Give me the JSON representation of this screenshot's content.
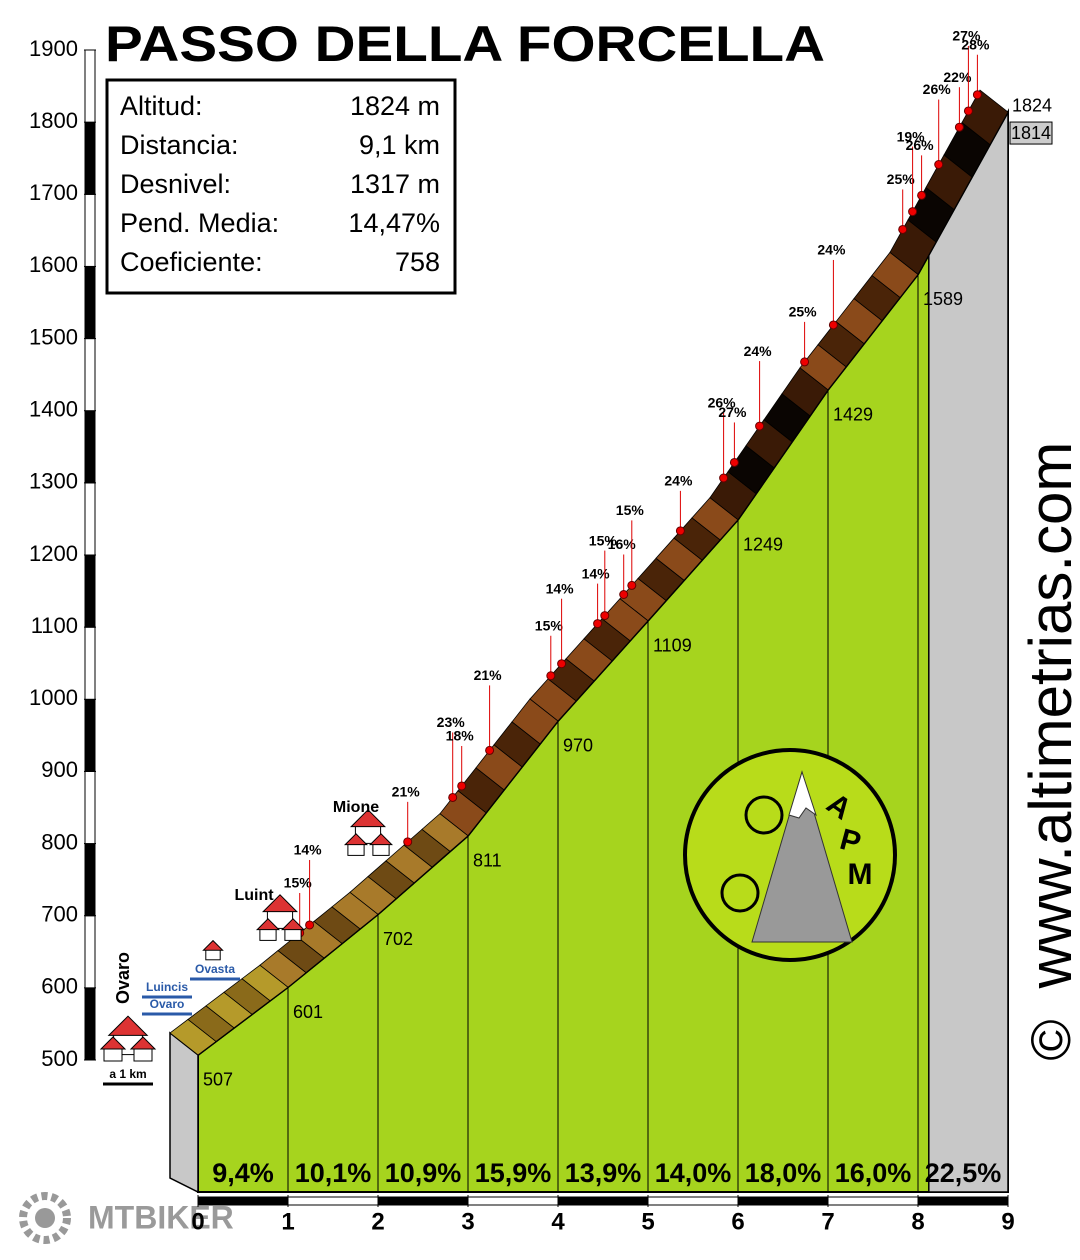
{
  "title": "PASSO DELLA FORCELLA",
  "info": [
    {
      "label": "Altitud:",
      "value": "1824 m"
    },
    {
      "label": "Distancia:",
      "value": "9,1 km"
    },
    {
      "label": "Desnivel:",
      "value": "1317 m"
    },
    {
      "label": "Pend. Media:",
      "value": "14,47%"
    },
    {
      "label": "Coeficiente:",
      "value": "758"
    }
  ],
  "chart_data": {
    "type": "climb-profile",
    "x": [
      0,
      1,
      2,
      3,
      4,
      5,
      6,
      7,
      8,
      9
    ],
    "values": [
      507,
      601,
      702,
      811,
      970,
      1109,
      1249,
      1429,
      1589,
      1814
    ],
    "summit": 1824,
    "xlim": [
      0,
      9
    ],
    "xticks": [
      0,
      1,
      2,
      3,
      4,
      5,
      6,
      7,
      8,
      9
    ],
    "ylim": [
      500,
      1900
    ],
    "yticks": [
      500,
      600,
      700,
      800,
      900,
      1000,
      1100,
      1200,
      1300,
      1400,
      1500,
      1600,
      1700,
      1800,
      1900
    ],
    "grades": {
      "values": [
        9.4,
        10.1,
        10.9,
        15.9,
        13.9,
        14.0,
        18.0,
        16.0,
        22.5
      ],
      "value_labels": [
        "9,4%",
        "10,1%",
        "10,9%",
        "15,9%",
        "13,9%",
        "14,0%",
        "18,0%",
        "16,0%",
        "22,5%"
      ]
    },
    "steep_points": {
      "x": [
        1.13,
        1.24,
        2.33,
        2.83,
        2.93,
        3.24,
        3.92,
        4.04,
        4.44,
        4.52,
        4.73,
        4.82,
        5.36,
        5.84,
        5.96,
        6.24,
        6.74,
        7.06,
        7.83,
        7.94,
        8.04,
        8.23,
        8.46,
        8.56,
        8.66
      ],
      "values": [
        15,
        14,
        21,
        23,
        18,
        21,
        15,
        14,
        14,
        15,
        16,
        15,
        24,
        26,
        27,
        24,
        25,
        24,
        25,
        19,
        26,
        26,
        22,
        27,
        28
      ],
      "value_labels": [
        "15%",
        "14%",
        "21%",
        "23%",
        "18%",
        "21%",
        "15%",
        "14%",
        "14%",
        "15%",
        "16%",
        "15%",
        "24%",
        "26%",
        "27%",
        "24%",
        "25%",
        "24%",
        "25%",
        "19%",
        "26%",
        "26%",
        "22%",
        "27%",
        "28%"
      ]
    }
  },
  "places": [
    "Ovaro",
    "Luint",
    "Mione"
  ],
  "signs": [
    "Luincis",
    "Ovaro",
    "Ovasta",
    "a 1 km"
  ],
  "logo": [
    "A",
    "P",
    "M"
  ],
  "website": "www.altimetrias.com",
  "copyright": "©",
  "brand": "MTBIKER"
}
